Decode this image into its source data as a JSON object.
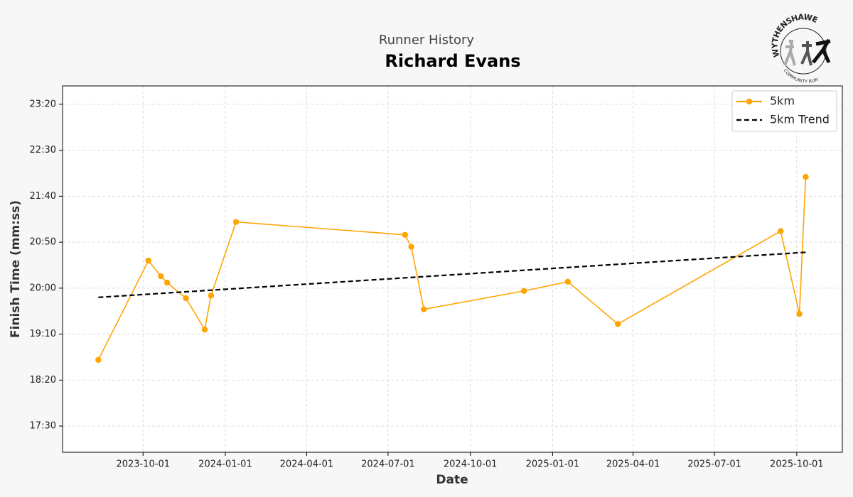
{
  "chart_data": {
    "type": "line",
    "subtitle": "Runner History",
    "title": "Richard Evans",
    "logo": {
      "top": "WYTHENSHAWE",
      "bottom": "COMMUNITY RUN"
    },
    "x_label": "Date",
    "y_label": "Finish Time (mm:ss)",
    "x": [
      "2023-08-12",
      "2023-10-07",
      "2023-10-21",
      "2023-10-28",
      "2023-11-18",
      "2023-12-09",
      "2023-12-16",
      "2024-01-13",
      "2024-07-20",
      "2024-07-27",
      "2024-08-10",
      "2024-11-30",
      "2025-01-18",
      "2025-03-15",
      "2025-09-13",
      "2025-10-04",
      "2025-10-11"
    ],
    "series": [
      {
        "name": "5km",
        "color": "#ffa500",
        "values": [
          1122,
          1230,
          1213,
          1206,
          1189,
          1155,
          1192,
          1272,
          1258,
          1245,
          1177,
          1197,
          1207,
          1161,
          1262,
          1172,
          1321
        ]
      },
      {
        "name": "5km Trend",
        "color": "#000000",
        "dashed": true,
        "x": [
          "2023-08-12",
          "2025-10-11"
        ],
        "values": [
          1190,
          1239
        ]
      }
    ],
    "xlim": [
      "2023-07-03",
      "2025-11-21"
    ],
    "xticks": [
      "2023-10-01",
      "2024-01-01",
      "2024-04-01",
      "2024-07-01",
      "2024-10-01",
      "2025-01-01",
      "2025-04-01",
      "2025-07-01",
      "2025-10-01"
    ],
    "ylim": [
      1021.5,
      1420
    ],
    "yticks": [
      {
        "value": 1050,
        "label": "17:30"
      },
      {
        "value": 1100,
        "label": "18:20"
      },
      {
        "value": 1150,
        "label": "19:10"
      },
      {
        "value": 1200,
        "label": "20:00"
      },
      {
        "value": 1250,
        "label": "20:50"
      },
      {
        "value": 1300,
        "label": "21:40"
      },
      {
        "value": 1350,
        "label": "22:30"
      },
      {
        "value": 1400,
        "label": "23:20"
      }
    ],
    "grid": true,
    "legend": "upper right"
  }
}
